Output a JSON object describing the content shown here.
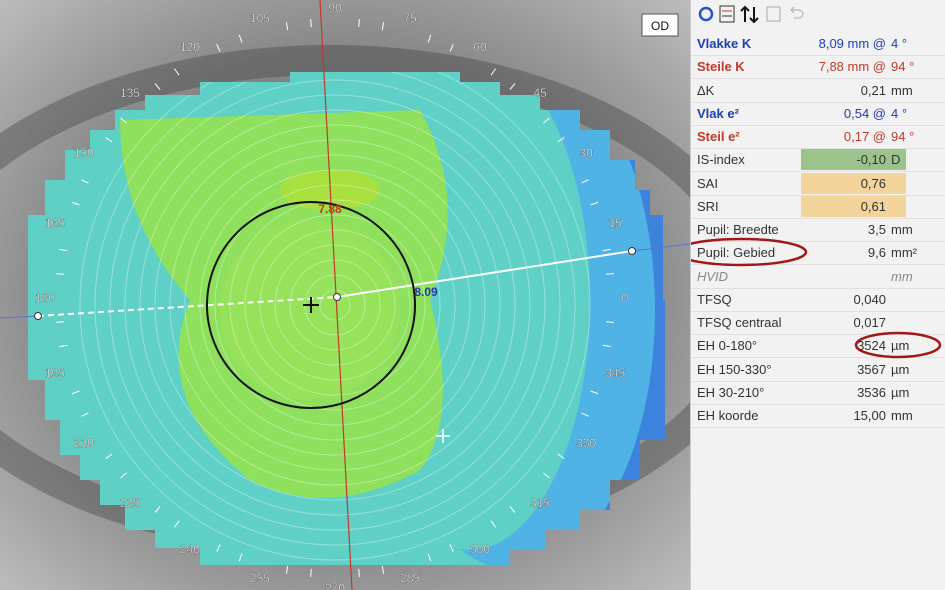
{
  "map": {
    "eye": "OD",
    "steep_label": "7.88",
    "flat_label": "8.09",
    "angles": [
      90,
      75,
      60,
      45,
      30,
      15,
      0,
      345,
      330,
      315,
      300,
      285,
      270,
      255,
      240,
      225,
      210,
      195,
      180,
      165,
      150,
      135,
      120,
      105
    ]
  },
  "panel": {
    "rows": [
      {
        "label": "Vlakke K",
        "value": "8,09 mm @",
        "unit": "4 °",
        "color": "#1f3fb0"
      },
      {
        "label": "Steile K",
        "value": "7,88 mm @",
        "unit": "94 °",
        "color": "#c0392b"
      },
      {
        "label": "ΔK",
        "value": "0,21",
        "unit": "mm"
      },
      {
        "label": "Vlak e²",
        "value": "0,54 @",
        "unit": "4 °",
        "color": "#1f3fb0"
      },
      {
        "label": "Steil e²",
        "value": "0,17 @",
        "unit": "94 °",
        "color": "#c0392b"
      },
      {
        "label": "IS-index",
        "value": "-0,10",
        "unit": "D",
        "highlight": "#9cc38c"
      },
      {
        "label": "SAI",
        "value": "0,76",
        "highlight": "#f3d49a"
      },
      {
        "label": "SRI",
        "value": "0,61",
        "highlight": "#f3d49a"
      },
      {
        "label": "Pupil: Breedte",
        "value": "3,5",
        "unit": "mm"
      },
      {
        "label": "Pupil: Gebied",
        "value": "9,6",
        "unit": "mm²"
      },
      {
        "label": "HVID",
        "unit": "mm",
        "muted": true
      },
      {
        "label": "TFSQ",
        "value": "0,040"
      },
      {
        "label": "TFSQ centraal",
        "value": "0,017"
      },
      {
        "label": "EH 0-180°",
        "value": "3524",
        "unit": "µm"
      },
      {
        "label": "EH 150-330°",
        "value": "3567",
        "unit": "µm"
      },
      {
        "label": "EH 30-210°",
        "value": "3536",
        "unit": "µm"
      },
      {
        "label": "EH koorde",
        "value": "15,00",
        "unit": "mm"
      }
    ]
  }
}
